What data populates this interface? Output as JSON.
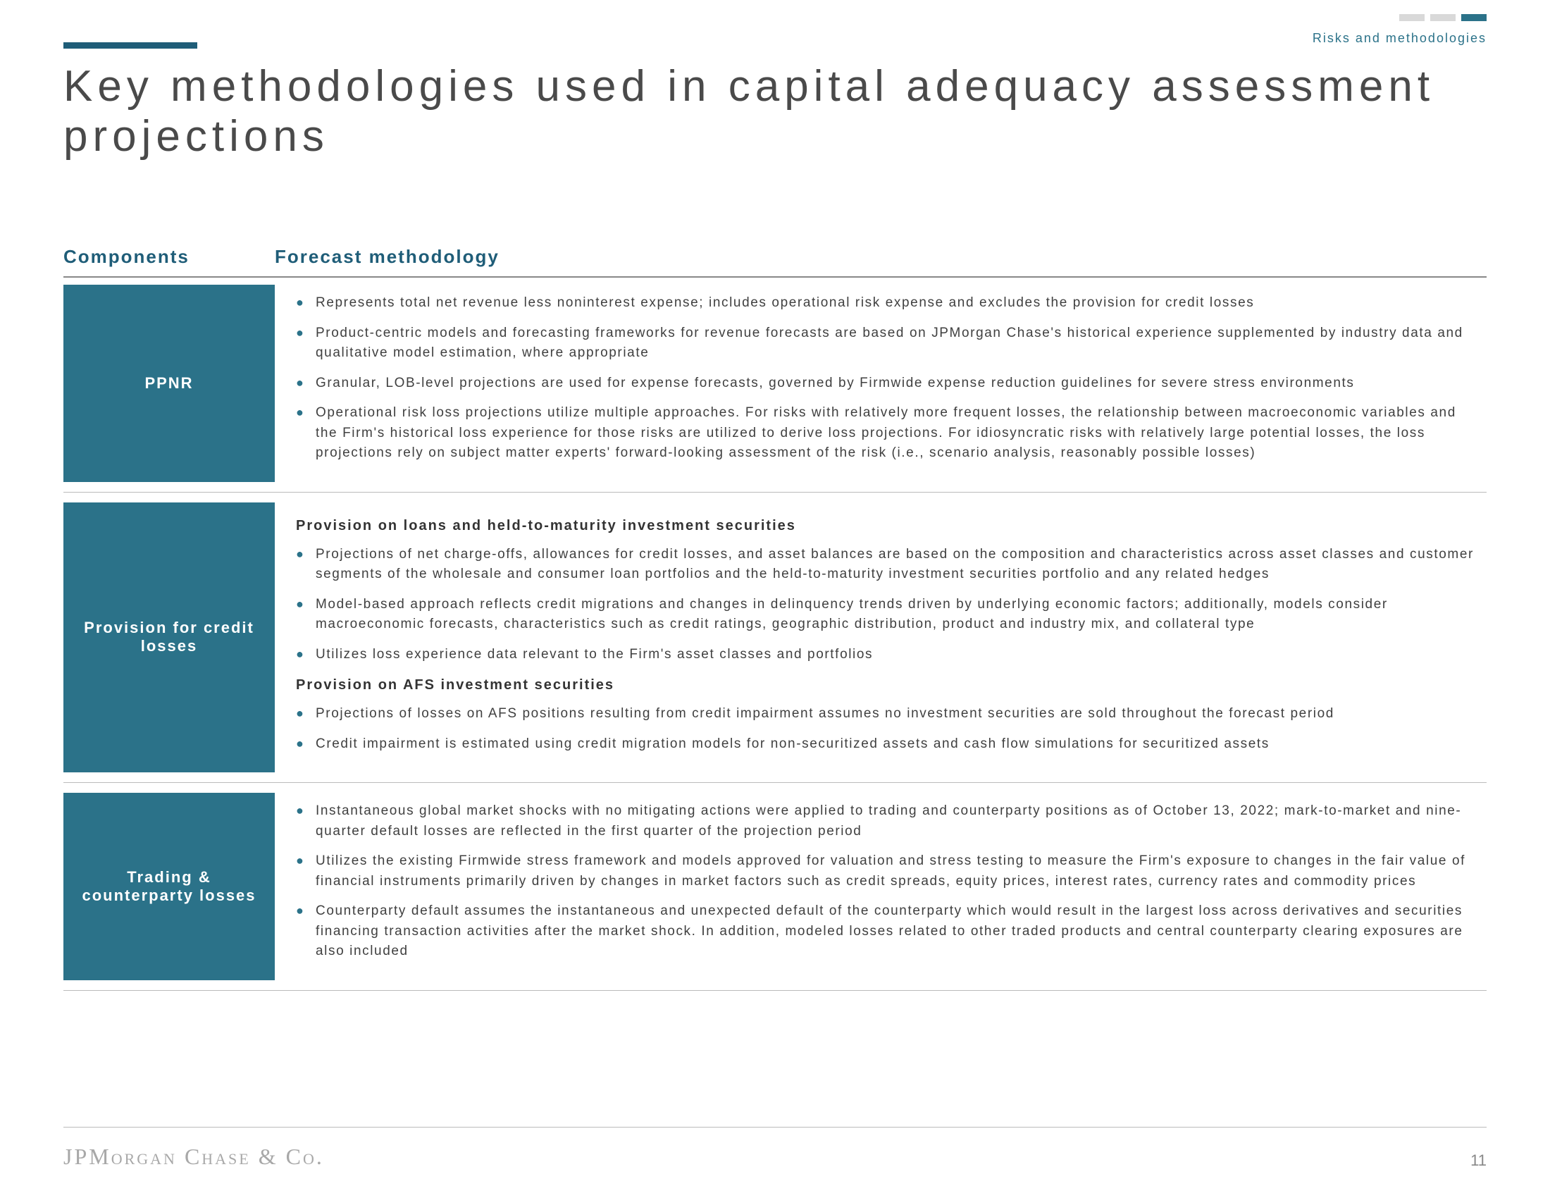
{
  "colors": {
    "accent": "#1f5d78",
    "label_bg": "#2b7289",
    "breadcrumb": "#2b7289",
    "bullet": "#2b7289",
    "ind_inactive": "#d9d9d9",
    "ind_active": "#2b7289",
    "header_text": "#1f5d78"
  },
  "breadcrumb": "Risks and methodologies",
  "title": "Key methodologies used in capital adequacy assessment projections",
  "headers": {
    "left": "Components",
    "right": "Forecast methodology"
  },
  "sections": [
    {
      "label": "PPNR",
      "blocks": [
        {
          "subhead": null,
          "bullets": [
            "Represents total net revenue less noninterest expense; includes operational risk expense and excludes the provision for credit losses",
            "Product-centric models and forecasting frameworks for revenue forecasts are based on JPMorgan Chase's historical experience supplemented by industry data and qualitative model estimation, where appropriate",
            "Granular, LOB-level projections are used for expense forecasts, governed by Firmwide expense reduction guidelines for severe stress environments",
            "Operational risk loss projections utilize multiple approaches. For risks with relatively more frequent losses, the relationship between macroeconomic variables and the Firm's historical loss experience for those risks are utilized to derive loss projections. For idiosyncratic risks with relatively large potential losses, the loss projections rely on subject matter experts' forward-looking assessment of the risk (i.e., scenario analysis, reasonably possible losses)"
          ]
        }
      ]
    },
    {
      "label": "Provision for credit losses",
      "blocks": [
        {
          "subhead": "Provision on loans and held-to-maturity investment securities",
          "bullets": [
            "Projections of net charge-offs, allowances for credit losses, and asset balances are based on the composition and characteristics across asset classes and customer segments of the wholesale and consumer loan portfolios and the held-to-maturity investment securities portfolio and any related hedges",
            "Model-based approach reflects credit migrations and changes in delinquency trends driven by underlying economic factors; additionally, models consider macroeconomic forecasts, characteristics such as credit ratings, geographic distribution, product and industry mix, and collateral type",
            "Utilizes loss experience data relevant to the Firm's asset classes and portfolios"
          ]
        },
        {
          "subhead": "Provision on AFS investment securities",
          "bullets": [
            "Projections of losses on AFS positions resulting from credit impairment assumes no investment securities are sold throughout the forecast period",
            "Credit impairment is estimated using credit migration models for non-securitized assets and cash flow simulations for securitized assets"
          ]
        }
      ]
    },
    {
      "label": "Trading & counterparty losses",
      "blocks": [
        {
          "subhead": null,
          "bullets": [
            "Instantaneous global market shocks with no mitigating actions were applied to trading and counterparty positions as of October 13, 2022; mark-to-market and nine-quarter default losses are reflected in the first quarter of the projection period",
            "Utilizes the existing Firmwide stress framework and models approved for valuation and stress testing to measure the Firm's exposure to changes in the fair value of financial instruments primarily driven by changes in market factors such as credit spreads, equity prices, interest rates, currency rates and commodity prices",
            "Counterparty default assumes the instantaneous and unexpected default of the counterparty which would result in the largest loss across derivatives and securities financing transaction activities after the market shock. In addition, modeled losses related to other traded products and central counterparty clearing exposures are also included"
          ]
        }
      ]
    }
  ],
  "footer": {
    "logo_main": "JPMORGAN CHASE & CO.",
    "page": "11"
  }
}
